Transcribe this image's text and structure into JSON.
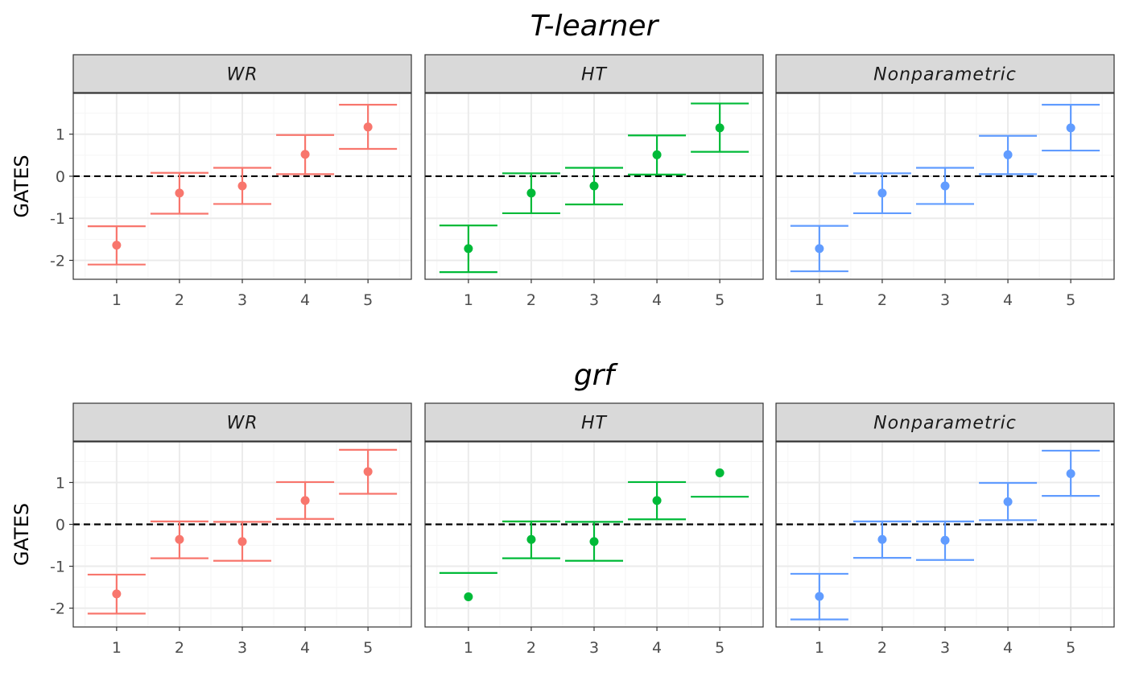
{
  "colors": {
    "WR": "#F8766D",
    "HT": "#00BA38",
    "Nonparametric": "#619CFF",
    "strip_fill": "#D9D9D9",
    "grid_major": "#EBEBEB",
    "grid_minor": "#F5F5F5",
    "panel_border": "#333333"
  },
  "chart_data": [
    {
      "type": "errorbar",
      "title": "T-learner",
      "ylabel": "GATES",
      "ylim": [
        -2.45,
        1.97
      ],
      "y_ticks": [
        -2,
        -1,
        0,
        1
      ],
      "y_tick_labels": [
        "-2",
        "-1",
        "0",
        "1"
      ],
      "x_categories": [
        "1",
        "2",
        "3",
        "4",
        "5"
      ],
      "reference_line": 0,
      "panels": [
        {
          "name": "WR",
          "estimates": [
            -1.64,
            -0.4,
            -0.23,
            0.52,
            1.17
          ],
          "lower": [
            -2.1,
            -0.89,
            -0.66,
            0.05,
            0.65
          ],
          "upper": [
            -1.19,
            0.08,
            0.2,
            0.98,
            1.7
          ]
        },
        {
          "name": "HT",
          "estimates": [
            -1.72,
            -0.4,
            -0.23,
            0.51,
            1.15
          ],
          "lower": [
            -2.28,
            -0.88,
            -0.67,
            0.04,
            0.58
          ],
          "upper": [
            -1.17,
            0.07,
            0.2,
            0.97,
            1.73
          ]
        },
        {
          "name": "Nonparametric",
          "estimates": [
            -1.72,
            -0.4,
            -0.23,
            0.51,
            1.15
          ],
          "lower": [
            -2.26,
            -0.88,
            -0.66,
            0.05,
            0.61
          ],
          "upper": [
            -1.18,
            0.07,
            0.2,
            0.96,
            1.7
          ]
        }
      ]
    },
    {
      "type": "errorbar",
      "title": "grf",
      "ylabel": "GATES",
      "ylim": [
        -2.45,
        1.97
      ],
      "y_ticks": [
        -2,
        -1,
        0,
        1
      ],
      "y_tick_labels": [
        "-2",
        "-1",
        "0",
        "1"
      ],
      "x_categories": [
        "1",
        "2",
        "3",
        "4",
        "5"
      ],
      "reference_line": 0,
      "panels": [
        {
          "name": "WR",
          "estimates": [
            -1.66,
            -0.36,
            -0.41,
            0.57,
            1.26
          ],
          "lower": [
            -2.13,
            -0.81,
            -0.87,
            0.13,
            0.73
          ],
          "upper": [
            -1.2,
            0.07,
            0.06,
            1.01,
            1.78
          ]
        },
        {
          "name": "HT",
          "estimates": [
            -1.73,
            -0.36,
            -0.41,
            0.57,
            1.23
          ],
          "lower": [
            null,
            -0.81,
            -0.87,
            0.12,
            0.66
          ],
          "upper": [
            -1.16,
            0.07,
            0.06,
            1.01,
            null
          ]
        },
        {
          "name": "Nonparametric",
          "estimates": [
            -1.72,
            -0.36,
            -0.38,
            0.54,
            1.21
          ],
          "lower": [
            -2.27,
            -0.8,
            -0.85,
            0.1,
            0.68
          ],
          "upper": [
            -1.18,
            0.07,
            0.07,
            0.99,
            1.76
          ]
        }
      ]
    }
  ]
}
